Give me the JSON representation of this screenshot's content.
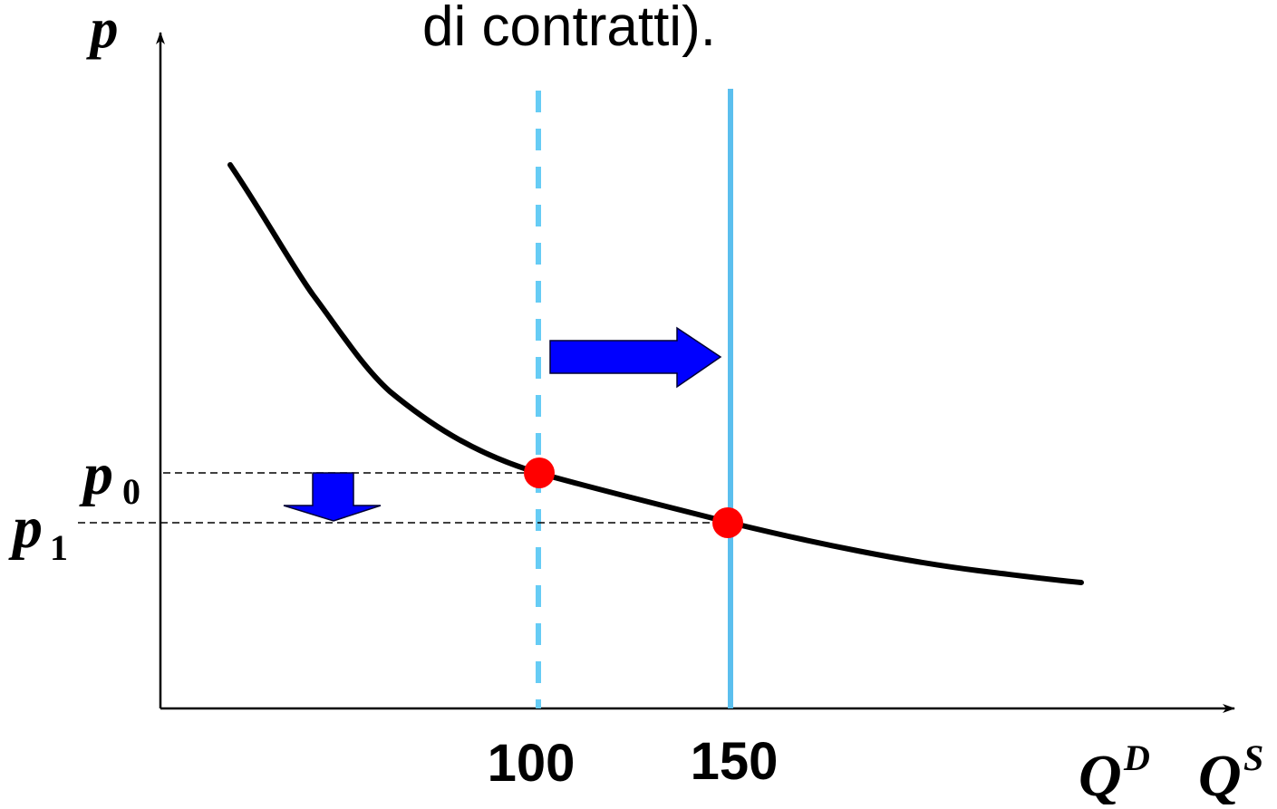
{
  "title_fragment": "di contratti).",
  "axes": {
    "y_label": "p",
    "x_label_demand_main": "Q",
    "x_label_demand_sup": "D",
    "x_label_supply_main": "Q",
    "x_label_supply_sup": "S"
  },
  "price_labels": [
    {
      "main": "p",
      "sub": "0"
    },
    {
      "main": "p",
      "sub": "1"
    }
  ],
  "quantity_ticks": [
    "100",
    "150"
  ],
  "colors": {
    "demand_curve": "#000000",
    "supply_old": "#66ccf5",
    "supply_new": "#5bbfee",
    "equilibrium_point": "#ff0000",
    "shift_arrow": "#0000ff",
    "axis": "#000000"
  }
}
